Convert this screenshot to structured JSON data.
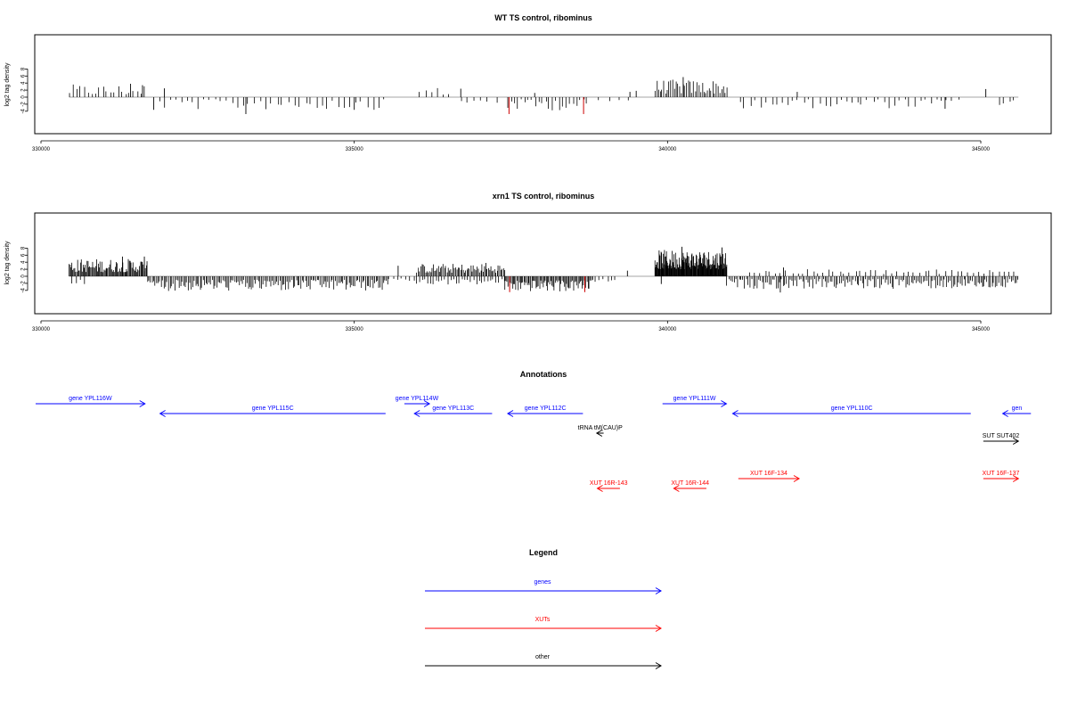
{
  "chart_data": [
    {
      "type": "bar",
      "title": "WT TS control, ribominus",
      "ylabel": "log2 tag density",
      "xlim": [
        330000,
        345800
      ],
      "ylim": [
        -5.2,
        9.2
      ],
      "xticks": [
        "330000",
        "335000",
        "340000",
        "345000"
      ],
      "yticks": [
        "-4",
        "-2",
        "0",
        "2",
        "4",
        "6",
        "8"
      ],
      "bar_color": "#000000",
      "highlight_color": "#cc0000",
      "segments": [
        {
          "start": 330450,
          "end": 331700,
          "step": 60,
          "sign": 1,
          "min": 0.6,
          "max": 3.6
        },
        {
          "start": 331880,
          "end": 335500,
          "step": 90,
          "sign": -1,
          "min": 0.6,
          "max": 3.6
        },
        {
          "start": 336050,
          "end": 336550,
          "step": 90,
          "sign": 1,
          "min": 0.6,
          "max": 2.8
        },
        {
          "start": 336700,
          "end": 337250,
          "step": 110,
          "sign": -1,
          "min": 0.6,
          "max": 2.2
        },
        {
          "start": 337450,
          "end": 338750,
          "step": 55,
          "sign": -1,
          "min": 0.6,
          "max": 3.8
        },
        {
          "start": 338900,
          "end": 339400,
          "step": 160,
          "sign": -1,
          "min": 0.6,
          "max": 1.6
        },
        {
          "start": 339800,
          "end": 340950,
          "step": 28,
          "sign": 1,
          "min": 1.0,
          "max": 5.0
        },
        {
          "start": 341150,
          "end": 344700,
          "step": 85,
          "sign": -1,
          "min": 0.6,
          "max": 3.2
        },
        {
          "start": 345300,
          "end": 345600,
          "step": 80,
          "sign": -1,
          "min": 0.8,
          "max": 2.4
        }
      ],
      "spikes": [
        {
          "x": 331430,
          "y": 3.8
        },
        {
          "x": 331620,
          "y": 3.4
        },
        {
          "x": 331800,
          "y": -3.6
        },
        {
          "x": 331970,
          "y": 2.5
        },
        {
          "x": 333270,
          "y": -4.8
        },
        {
          "x": 335000,
          "y": -3.6
        },
        {
          "x": 336700,
          "y": 2.4
        },
        {
          "x": 337880,
          "y": 1.2
        },
        {
          "x": 339400,
          "y": 1.5
        },
        {
          "x": 339500,
          "y": 1.8
        },
        {
          "x": 340250,
          "y": 5.7
        },
        {
          "x": 342070,
          "y": 1.5
        },
        {
          "x": 344430,
          "y": -3.3
        },
        {
          "x": 345080,
          "y": 2.3
        }
      ],
      "highlights": [
        {
          "x": 337470,
          "y": -4.8
        },
        {
          "x": 338660,
          "y": -4.8
        }
      ]
    },
    {
      "type": "bar",
      "title": "xrn1 TS control, ribominus",
      "ylabel": "log2 tag density",
      "xlim": [
        330000,
        345800
      ],
      "ylim": [
        -5.2,
        9.2
      ],
      "xticks": [
        "330000",
        "335000",
        "340000",
        "345000"
      ],
      "yticks": [
        "-4",
        "-2",
        "0",
        "2",
        "4",
        "6",
        "8"
      ],
      "bar_color": "#000000",
      "highlight_color": "#cc0000",
      "segments": [
        {
          "start": 330450,
          "end": 331700,
          "step": 15,
          "sign": 1,
          "min": 1.2,
          "max": 5.0
        },
        {
          "start": 330500,
          "end": 330700,
          "step": 60,
          "sign": -1,
          "min": 1.0,
          "max": 2.2
        },
        {
          "start": 331700,
          "end": 335550,
          "step": 24,
          "sign": -1,
          "min": 1.0,
          "max": 4.2
        },
        {
          "start": 335550,
          "end": 336000,
          "step": 70,
          "sign": -1,
          "min": 0.6,
          "max": 1.4
        },
        {
          "start": 336000,
          "end": 337400,
          "step": 20,
          "sign": 1,
          "min": 1.0,
          "max": 3.6
        },
        {
          "start": 336000,
          "end": 337400,
          "step": 45,
          "sign": -1,
          "min": 0.8,
          "max": 2.4
        },
        {
          "start": 337400,
          "end": 338800,
          "step": 18,
          "sign": -1,
          "min": 1.2,
          "max": 4.4
        },
        {
          "start": 338800,
          "end": 339200,
          "step": 60,
          "sign": -1,
          "min": 0.8,
          "max": 1.6
        },
        {
          "start": 339800,
          "end": 340950,
          "step": 8,
          "sign": 1,
          "min": 2.0,
          "max": 7.5
        },
        {
          "start": 340950,
          "end": 345600,
          "step": 28,
          "sign": -1,
          "min": 0.8,
          "max": 3.6
        },
        {
          "start": 341300,
          "end": 345600,
          "step": 85,
          "sign": 1,
          "min": 0.6,
          "max": 2.0
        }
      ],
      "spikes": [
        {
          "x": 331300,
          "y": 5.6
        },
        {
          "x": 331650,
          "y": 5.6
        },
        {
          "x": 335700,
          "y": 3.0
        },
        {
          "x": 337100,
          "y": 3.8
        },
        {
          "x": 339360,
          "y": 1.6
        },
        {
          "x": 339900,
          "y": -2.2
        },
        {
          "x": 340230,
          "y": 8.4
        },
        {
          "x": 340870,
          "y": 8.2
        },
        {
          "x": 341800,
          "y": -4.6
        },
        {
          "x": 341850,
          "y": 2.5
        },
        {
          "x": 345030,
          "y": -3.0
        }
      ],
      "highlights": [
        {
          "x": 337480,
          "y": -4.5
        },
        {
          "x": 338680,
          "y": -4.5
        }
      ]
    }
  ],
  "annotations": {
    "title": "Annotations",
    "items": [
      {
        "label": "gene YPL116W",
        "color": "#0000ff",
        "dir": "right",
        "from": 329900,
        "to": 331660,
        "row": 0
      },
      {
        "label": "gene YPL115C",
        "color": "#0000ff",
        "dir": "left",
        "from": 331900,
        "to": 335500,
        "row": 1
      },
      {
        "label": "gene YPL114W",
        "color": "#0000ff",
        "dir": "right",
        "from": 335800,
        "to": 336200,
        "row": 0
      },
      {
        "label": "gene YPL113C",
        "color": "#0000ff",
        "dir": "left",
        "from": 335960,
        "to": 337200,
        "row": 1
      },
      {
        "label": "gene YPL112C",
        "color": "#0000ff",
        "dir": "left",
        "from": 337450,
        "to": 338650,
        "row": 1
      },
      {
        "label": "gene YPL111W",
        "color": "#0000ff",
        "dir": "right",
        "from": 339920,
        "to": 340940,
        "row": 0
      },
      {
        "label": "gene YPL110C",
        "color": "#0000ff",
        "dir": "left",
        "from": 341040,
        "to": 344840,
        "row": 1
      },
      {
        "label": "gen",
        "color": "#0000ff",
        "dir": "left",
        "from": 345350,
        "to": 345800,
        "row": 1
      },
      {
        "label": "tRNA tM(CAU)P",
        "color": "#000000",
        "dir": "left",
        "from": 338870,
        "to": 338980,
        "row": 2
      },
      {
        "label": "SUT SUT402",
        "color": "#000000",
        "dir": "right",
        "from": 345040,
        "to": 345600,
        "row": 3
      },
      {
        "label": "XUT 16F-134",
        "color": "#ff0000",
        "dir": "right",
        "from": 341130,
        "to": 342100,
        "row": 4
      },
      {
        "label": "XUT 16F-137",
        "color": "#ff0000",
        "dir": "right",
        "from": 345040,
        "to": 345600,
        "row": 4
      },
      {
        "label": "XUT 16R-143",
        "color": "#ff0000",
        "dir": "left",
        "from": 338880,
        "to": 339240,
        "row": 5
      },
      {
        "label": "XUT 16R-144",
        "color": "#ff0000",
        "dir": "left",
        "from": 340100,
        "to": 340620,
        "row": 5
      }
    ]
  },
  "legend": {
    "title": "Legend",
    "items": [
      {
        "label": "genes",
        "color": "#0000ff"
      },
      {
        "label": "XUTs",
        "color": "#ff0000"
      },
      {
        "label": "other",
        "color": "#000000"
      }
    ]
  }
}
